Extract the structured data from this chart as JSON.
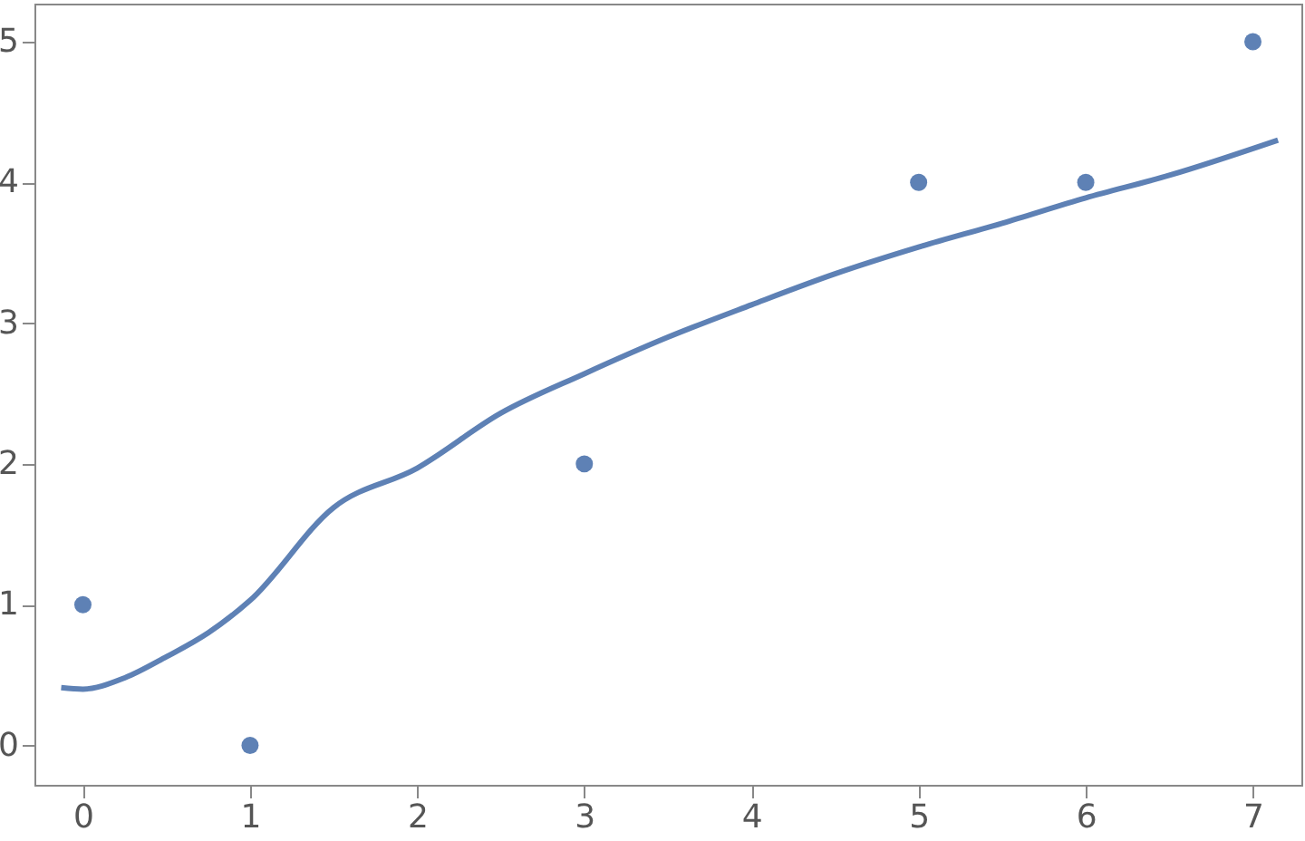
{
  "chart_data": {
    "type": "scatter",
    "xlim": [
      -0.29,
      7.29
    ],
    "ylim": [
      -0.28,
      5.27
    ],
    "xticks": [
      0,
      1,
      2,
      3,
      4,
      5,
      6,
      7
    ],
    "yticks": [
      0,
      1,
      2,
      3,
      4,
      5
    ],
    "grid": false,
    "series": [
      {
        "marker": "circle",
        "color": "#5e81b5",
        "x": [
          0,
          1,
          3,
          5,
          6,
          7
        ],
        "values": [
          1,
          0,
          2,
          4,
          4,
          5
        ]
      },
      {
        "type": "line",
        "marker": "none",
        "color": "#5e81b5",
        "line_style": "solid",
        "x": [
          -0.13,
          0,
          0.25,
          0.5,
          0.75,
          1,
          1.5,
          2,
          2.5,
          3,
          3.5,
          4,
          4.5,
          5,
          5.5,
          6,
          6.5,
          7.15
        ],
        "values": [
          0.41,
          0.4,
          0.48,
          0.63,
          0.8,
          1.03,
          1.69,
          1.97,
          2.36,
          2.64,
          2.9,
          3.13,
          3.35,
          3.54,
          3.71,
          3.89,
          4.05,
          4.3
        ]
      }
    ]
  }
}
